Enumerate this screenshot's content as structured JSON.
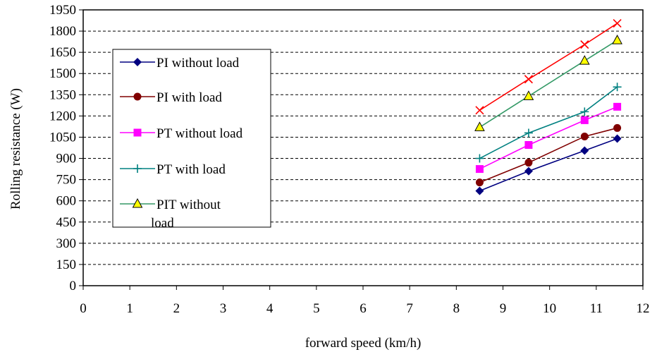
{
  "chart_data": {
    "type": "line",
    "xlabel": "forward speed (km/h)",
    "ylabel": "Rolling resistance (W)",
    "xlim": [
      0,
      12
    ],
    "ylim": [
      0,
      1950
    ],
    "x_ticks": [
      "0",
      "1",
      "2",
      "3",
      "4",
      "5",
      "6",
      "7",
      "8",
      "9",
      "10",
      "11",
      "12"
    ],
    "y_ticks": [
      "0",
      "150",
      "300",
      "450",
      "600",
      "750",
      "900",
      "1050",
      "1200",
      "1350",
      "1500",
      "1650",
      "1800",
      "1950"
    ],
    "grid": "horizontal dashed",
    "legend_placement": "left",
    "series": [
      {
        "name": "PI without load",
        "color": "#000080",
        "marker": "diamond",
        "x": [
          8.5,
          9.55,
          10.75,
          11.45
        ],
        "y": [
          670,
          810,
          955,
          1040
        ]
      },
      {
        "name": "PI with load",
        "color": "#800000",
        "marker": "circle",
        "x": [
          8.5,
          9.55,
          10.75,
          11.45
        ],
        "y": [
          730,
          870,
          1055,
          1115
        ]
      },
      {
        "name": "PT without load",
        "color": "#ff00ff",
        "marker": "square",
        "x": [
          8.5,
          9.55,
          10.75,
          11.45
        ],
        "y": [
          825,
          995,
          1170,
          1265
        ]
      },
      {
        "name": "PT with load",
        "color": "#008080",
        "marker": "plus",
        "x": [
          8.5,
          9.55,
          10.75,
          11.45
        ],
        "y": [
          900,
          1080,
          1230,
          1405
        ]
      },
      {
        "name": "PIT without load",
        "color": "#339966",
        "marker": "triangle",
        "x": [
          8.5,
          9.55,
          10.75,
          11.45
        ],
        "y": [
          1120,
          1340,
          1590,
          1735
        ]
      },
      {
        "name": "",
        "color": "#ff0000",
        "marker": "x",
        "x": [
          8.5,
          9.55,
          10.75,
          11.45
        ],
        "y": [
          1240,
          1460,
          1705,
          1855
        ]
      }
    ]
  }
}
